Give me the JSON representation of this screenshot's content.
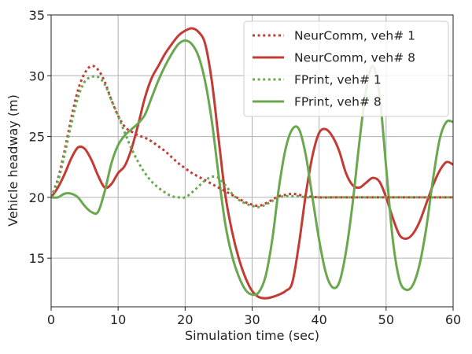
{
  "chart_data": {
    "type": "line",
    "title": "",
    "xlabel": "Simulation time (sec)",
    "ylabel": "Vehicle headway (m)",
    "xlim": [
      0,
      60
    ],
    "ylim": [
      11,
      35
    ],
    "xticks": [
      0,
      10,
      20,
      30,
      40,
      50,
      60
    ],
    "yticks": [
      15,
      20,
      25,
      30,
      35
    ],
    "grid": true,
    "legend_position": "upper-right",
    "series": [
      {
        "name": "NeurComm, veh# 1",
        "color": "#c23b35",
        "style": "dotted",
        "x": [
          0,
          1,
          2,
          3,
          4,
          5,
          6,
          7,
          8,
          9,
          10,
          11,
          12,
          13,
          14,
          15,
          16,
          17,
          18,
          19,
          20,
          21,
          22,
          23,
          24,
          25,
          26,
          27,
          28,
          29,
          30,
          31,
          32,
          33,
          34,
          35,
          36,
          37,
          38,
          40,
          42,
          45,
          50,
          55,
          60
        ],
        "y": [
          20.0,
          21.5,
          23.8,
          26.5,
          28.8,
          30.2,
          30.8,
          30.5,
          29.5,
          28.0,
          26.7,
          25.8,
          25.4,
          25.1,
          24.9,
          24.6,
          24.2,
          23.8,
          23.3,
          22.8,
          22.4,
          22.0,
          21.7,
          21.4,
          21.1,
          20.8,
          20.5,
          20.2,
          19.9,
          19.6,
          19.4,
          19.3,
          19.5,
          19.8,
          20.1,
          20.2,
          20.3,
          20.2,
          20.1,
          20.0,
          20.0,
          20.0,
          20.0,
          20.0,
          20.0
        ]
      },
      {
        "name": "NeurComm, veh# 8",
        "color": "#c23b35",
        "style": "solid",
        "x": [
          0,
          1,
          2,
          3,
          4,
          5,
          6,
          7,
          8,
          9,
          10,
          11,
          12,
          13,
          14,
          15,
          16,
          17,
          18,
          19,
          20,
          21,
          22,
          23,
          24,
          25,
          26,
          27,
          28,
          29,
          30,
          31,
          32,
          33,
          34,
          35,
          36,
          37,
          38,
          39,
          40,
          41,
          42,
          43,
          44,
          45,
          46,
          47,
          48,
          49,
          50,
          51,
          52,
          53,
          54,
          55,
          56,
          57,
          58,
          59,
          60
        ],
        "y": [
          20.0,
          20.8,
          21.9,
          23.2,
          24.1,
          24.0,
          23.1,
          21.8,
          20.8,
          21.1,
          22.0,
          22.6,
          24.0,
          26.0,
          28.2,
          29.8,
          30.8,
          31.8,
          32.6,
          33.3,
          33.7,
          33.9,
          33.6,
          32.6,
          29.5,
          24.8,
          20.2,
          17.2,
          15.0,
          13.4,
          12.3,
          11.8,
          11.7,
          11.8,
          12.0,
          12.3,
          13.0,
          16.2,
          20.2,
          23.4,
          25.3,
          25.6,
          25.0,
          23.8,
          22.0,
          21.0,
          20.8,
          21.2,
          21.6,
          21.3,
          20.0,
          18.3,
          16.9,
          16.6,
          17.0,
          18.0,
          19.5,
          21.0,
          22.2,
          22.9,
          22.7
        ]
      },
      {
        "name": "FPrint, veh# 1",
        "color": "#6aa84f",
        "style": "dotted",
        "x": [
          0,
          1,
          2,
          3,
          4,
          5,
          6,
          7,
          8,
          9,
          10,
          11,
          12,
          13,
          14,
          15,
          16,
          17,
          18,
          19,
          20,
          21,
          22,
          23,
          24,
          25,
          26,
          27,
          28,
          29,
          30,
          31,
          32,
          33,
          34,
          35,
          36,
          37,
          38,
          40,
          42,
          45,
          50,
          55,
          60
        ],
        "y": [
          20.0,
          21.3,
          23.5,
          26.0,
          28.2,
          29.5,
          29.9,
          29.9,
          29.3,
          28.0,
          26.7,
          25.3,
          24.0,
          22.9,
          22.0,
          21.3,
          20.8,
          20.4,
          20.1,
          20.0,
          20.0,
          20.4,
          20.9,
          21.4,
          21.7,
          21.6,
          21.0,
          20.3,
          19.8,
          19.5,
          19.3,
          19.2,
          19.4,
          19.7,
          20.0,
          20.1,
          20.1,
          20.1,
          20.0,
          20.0,
          20.0,
          20.0,
          20.0,
          20.0,
          20.0
        ]
      },
      {
        "name": "FPrint, veh# 8",
        "color": "#6aa84f",
        "style": "solid",
        "x": [
          0,
          1,
          2,
          3,
          4,
          5,
          6,
          7,
          8,
          9,
          10,
          11,
          12,
          13,
          14,
          15,
          16,
          17,
          18,
          19,
          20,
          21,
          22,
          23,
          24,
          25,
          26,
          27,
          28,
          29,
          30,
          31,
          32,
          33,
          34,
          35,
          36,
          37,
          38,
          39,
          40,
          41,
          42,
          43,
          44,
          45,
          46,
          47,
          48,
          49,
          50,
          51,
          52,
          53,
          54,
          55,
          56,
          57,
          58,
          59,
          60
        ],
        "y": [
          20.0,
          20.0,
          20.3,
          20.3,
          20.0,
          19.3,
          18.8,
          18.8,
          20.5,
          22.8,
          24.3,
          25.1,
          25.6,
          26.1,
          26.8,
          28.2,
          29.6,
          30.8,
          31.8,
          32.6,
          32.9,
          32.6,
          31.6,
          29.5,
          26.2,
          21.8,
          17.8,
          15.2,
          13.5,
          12.4,
          12.0,
          12.2,
          13.5,
          16.5,
          20.8,
          24.0,
          25.6,
          25.6,
          23.5,
          20.0,
          16.5,
          13.8,
          12.6,
          13.0,
          15.5,
          19.5,
          24.5,
          28.8,
          30.8,
          28.5,
          22.5,
          16.5,
          13.2,
          12.4,
          12.8,
          14.5,
          17.5,
          21.5,
          24.8,
          26.2,
          26.2
        ]
      }
    ]
  }
}
